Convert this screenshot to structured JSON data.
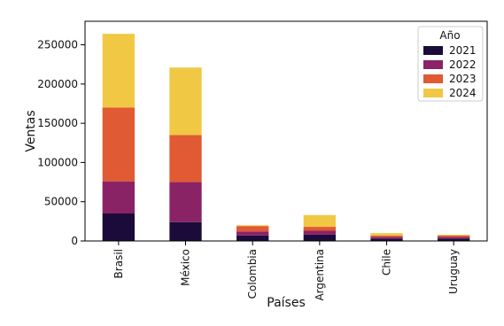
{
  "chart_data": {
    "type": "bar",
    "stacked": true,
    "categories": [
      "Brasil",
      "México",
      "Colombia",
      "Argentina",
      "Chile",
      "Uruguay"
    ],
    "series": [
      {
        "name": "2021",
        "color": "#1a0b3b",
        "values": [
          35000,
          24000,
          7000,
          8000,
          3000,
          3000
        ]
      },
      {
        "name": "2022",
        "color": "#8a2366",
        "values": [
          41000,
          51000,
          5000,
          5000,
          2000,
          2000
        ]
      },
      {
        "name": "2023",
        "color": "#e05a33",
        "values": [
          94000,
          60000,
          7000,
          5000,
          2000,
          2000
        ]
      },
      {
        "name": "2024",
        "color": "#f0c844",
        "values": [
          94000,
          86000,
          1000,
          15000,
          3000,
          1000
        ]
      }
    ],
    "xlabel": "Países",
    "ylabel": "Ventas",
    "ylim": [
      0,
      280000
    ],
    "yticks": [
      0,
      50000,
      100000,
      150000,
      200000,
      250000
    ],
    "legend": {
      "title": "Año",
      "placement": "top-right"
    },
    "grid": false
  }
}
